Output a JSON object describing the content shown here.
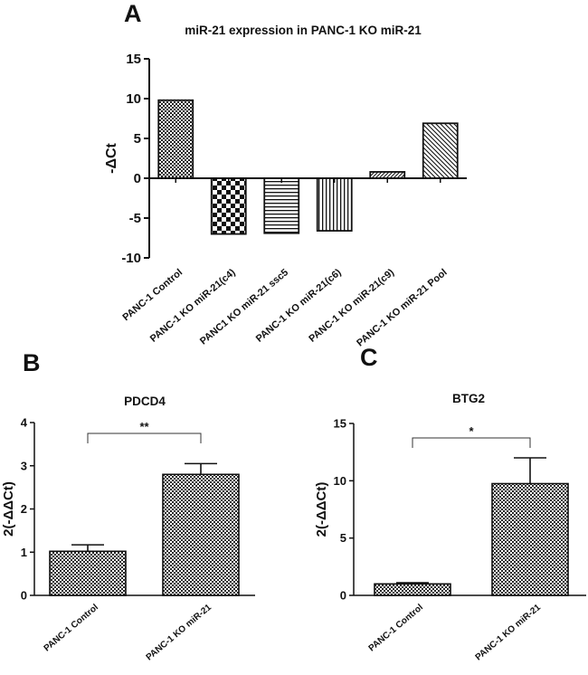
{
  "panels": {
    "a": {
      "letter": "A"
    },
    "b": {
      "letter": "B"
    },
    "c": {
      "letter": "C"
    }
  },
  "chart_data": [
    {
      "id": "a",
      "type": "bar",
      "title": "miR-21 expression in PANC-1 KO miR-21",
      "ylabel": "-ΔCt",
      "xlabel": "",
      "ylim": [
        -10,
        15
      ],
      "yticks": [
        15,
        10,
        5,
        0,
        -5,
        -10
      ],
      "categories": [
        "PANC-1 Control",
        "PANC-1 KO miR-21(c4)",
        "PANC1 KO miR-21 ssc5",
        "PANC-1 KO miR-21(c6)",
        "PANC-1 KO miR-21(c9)",
        "PANC-1 KO miR-21 Pool"
      ],
      "values": [
        9.8,
        -7.0,
        -6.9,
        -6.6,
        0.8,
        6.9
      ],
      "patterns": [
        "fine-check",
        "large-check",
        "horizontal",
        "vertical",
        "diagonal-left",
        "diagonal-right"
      ]
    },
    {
      "id": "b",
      "type": "bar",
      "title": "PDCD4",
      "ylabel": "2(-ΔΔCt)",
      "xlabel": "",
      "ylim": [
        0,
        4
      ],
      "yticks": [
        4,
        3,
        2,
        1,
        0
      ],
      "categories": [
        "PANC-1 Control",
        "PANC-1 KO miR-21"
      ],
      "values": [
        1.02,
        2.8
      ],
      "errors": [
        0.15,
        0.25
      ],
      "significance": "**"
    },
    {
      "id": "c",
      "type": "bar",
      "title": "BTG2",
      "ylabel": "2(-ΔΔCt)",
      "xlabel": "",
      "ylim": [
        0,
        15
      ],
      "yticks": [
        15,
        10,
        5,
        0
      ],
      "categories": [
        "PANC-1 Control",
        "PANC-1 KO miR-21"
      ],
      "values": [
        1.0,
        9.75
      ],
      "errors": [
        0.1,
        2.25
      ],
      "significance": "*"
    }
  ]
}
